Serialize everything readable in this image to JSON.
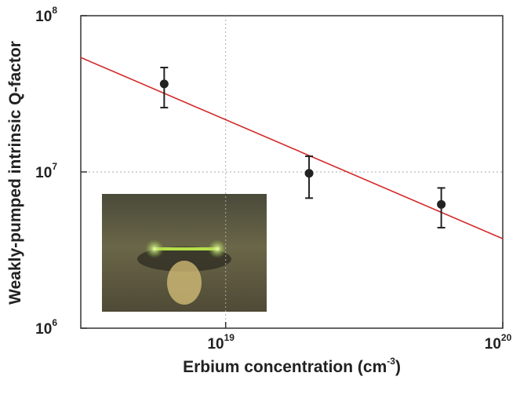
{
  "chart_data": {
    "type": "scatter",
    "xlabel": {
      "text": "Erbium concentration (cm",
      "sup": "-3",
      "tail": ")"
    },
    "ylabel": "Weakly-pumped intrinsic Q-factor",
    "x": [
      6e+18,
      2e+19,
      6e+19
    ],
    "values": [
      36600000,
      9800000,
      6200000
    ],
    "y_low": [
      25800000,
      6800000,
      4400000
    ],
    "y_high": [
      46600000,
      12600000,
      7900000
    ],
    "color": "#222222",
    "fit": {
      "x": [
        3e+18,
        1e+20
      ],
      "y": [
        54000000,
        3740000
      ],
      "color": "#d42a2a"
    },
    "xlim": [
      3e+18,
      1e+20
    ],
    "ylim": [
      1000000,
      100000000
    ],
    "xticks": [
      {
        "value": 1e+19,
        "label": "10",
        "exponent": "19"
      },
      {
        "value": 1e+20,
        "label": "10",
        "exponent": "20"
      }
    ],
    "yticks": [
      {
        "value": 1000000,
        "label": "10",
        "exponent": "6"
      },
      {
        "value": 10000000,
        "label": "10",
        "exponent": "7"
      },
      {
        "value": 100000000,
        "label": "10",
        "exponent": "8"
      }
    ],
    "log_x": true,
    "log_y": true,
    "grid": true
  }
}
